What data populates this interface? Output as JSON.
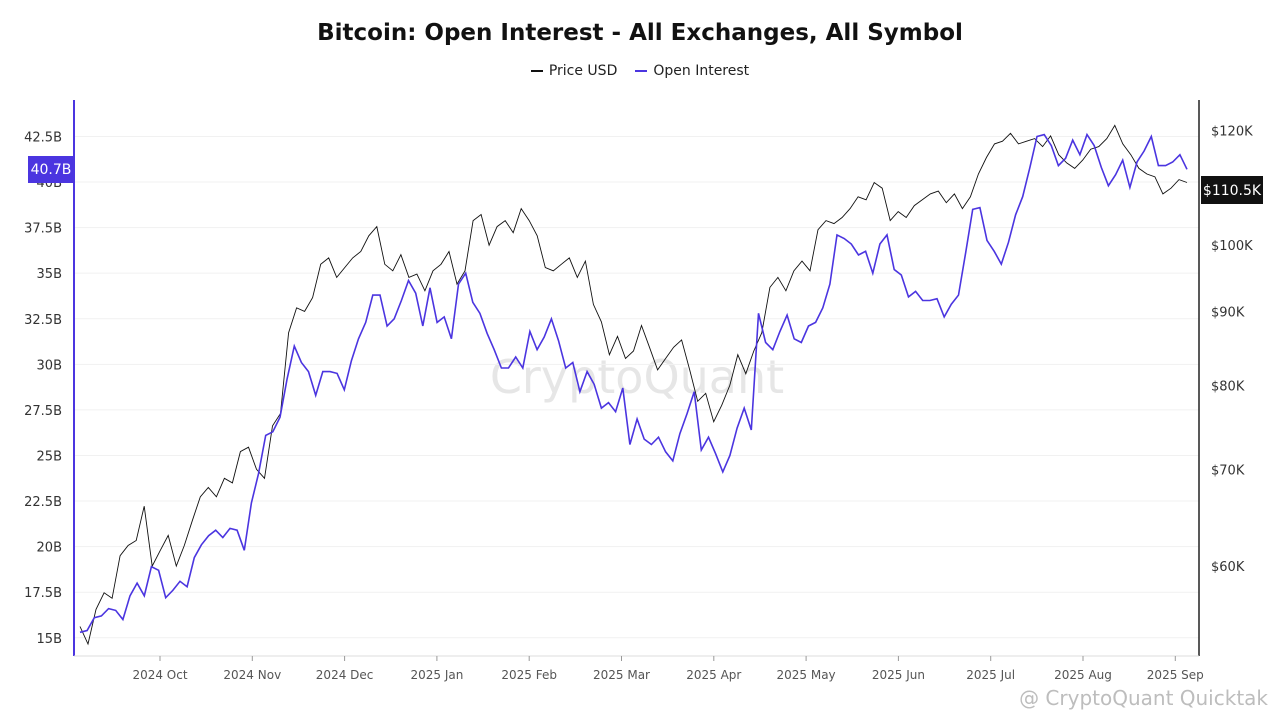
{
  "title": "Bitcoin: Open Interest - All Exchanges, All Symbol",
  "legend": [
    {
      "label": "Price USD",
      "color": "#111111"
    },
    {
      "label": "Open Interest",
      "color": "#4b35e0"
    }
  ],
  "watermark": "CryptoQuant",
  "footer": "@ CryptoQuant Quicktak",
  "colors": {
    "accent": "#4b35e0",
    "price": "#111111",
    "badge_dark": "#111111"
  },
  "chart_data": {
    "type": "line",
    "x_labels": [
      "2024 Oct",
      "2024 Nov",
      "2024 Dec",
      "2025 Jan",
      "2025 Feb",
      "2025 Mar",
      "2025 Apr",
      "2025 May",
      "2025 Jun",
      "2025 Jul",
      "2025 Aug",
      "2025 Sep"
    ],
    "y_left_ticks": [
      "15B",
      "17.5B",
      "20B",
      "22.5B",
      "25B",
      "27.5B",
      "30B",
      "32.5B",
      "35B",
      "37.5B",
      "40B",
      "42.5B"
    ],
    "y_right_ticks": [
      "$60K",
      "$70K",
      "$80K",
      "$90K",
      "$100K",
      "$120K"
    ],
    "y_left_range": [
      14,
      44.5
    ],
    "y_right_log_range": [
      52000,
      126000
    ],
    "current_oi_label": "40.7B",
    "current_price_label": "$110.5K",
    "series": [
      {
        "name": "Open Interest",
        "axis": "left",
        "color": "#4b35e0",
        "values": [
          15.3,
          15.4,
          16.1,
          16.2,
          16.6,
          16.5,
          16.0,
          17.3,
          18.0,
          17.3,
          18.9,
          18.7,
          17.2,
          17.6,
          18.1,
          17.8,
          19.4,
          20.1,
          20.6,
          20.9,
          20.5,
          21.0,
          20.9,
          19.8,
          22.4,
          24.0,
          26.1,
          26.3,
          27.1,
          29.2,
          31.0,
          30.1,
          29.6,
          28.3,
          29.6,
          29.6,
          29.5,
          28.6,
          30.2,
          31.4,
          32.3,
          33.8,
          33.8,
          32.1,
          32.5,
          33.5,
          34.6,
          33.9,
          32.1,
          34.2,
          32.3,
          32.6,
          31.4,
          34.4,
          35.0,
          33.4,
          32.8,
          31.7,
          30.8,
          29.8,
          29.8,
          30.4,
          29.8,
          31.8,
          30.8,
          31.5,
          32.5,
          31.3,
          29.8,
          30.1,
          28.5,
          29.6,
          28.9,
          27.6,
          27.9,
          27.4,
          28.7,
          25.6,
          27.0,
          25.9,
          25.6,
          26.0,
          25.2,
          24.7,
          26.2,
          27.3,
          28.5,
          25.3,
          26.0,
          25.1,
          24.1,
          25.0,
          26.5,
          27.6,
          26.4,
          32.8,
          31.2,
          30.8,
          31.8,
          32.7,
          31.4,
          31.2,
          32.1,
          32.3,
          33.1,
          34.4,
          37.1,
          36.9,
          36.6,
          36.0,
          36.2,
          35.0,
          36.6,
          37.1,
          35.2,
          34.9,
          33.7,
          34.0,
          33.5,
          33.5,
          33.6,
          32.6,
          33.3,
          33.8,
          36.1,
          38.5,
          38.6,
          36.8,
          36.2,
          35.5,
          36.7,
          38.2,
          39.2,
          40.8,
          42.5,
          42.6,
          42.0,
          40.9,
          41.3,
          42.3,
          41.5,
          42.6,
          42.0,
          40.8,
          39.8,
          40.4,
          41.2,
          39.7,
          41.1,
          41.7,
          42.5,
          40.9,
          40.9,
          41.1,
          41.5,
          40.7
        ]
      },
      {
        "name": "Price USD",
        "axis": "right",
        "color": "#111111",
        "values": [
          54500,
          53000,
          56000,
          57500,
          57000,
          61000,
          62000,
          62500,
          66000,
          60000,
          61500,
          63000,
          60000,
          62000,
          64500,
          67000,
          68000,
          67000,
          69000,
          68500,
          72000,
          72500,
          70000,
          69000,
          75000,
          76500,
          87000,
          90500,
          90000,
          92000,
          97000,
          98000,
          95000,
          96500,
          98000,
          99000,
          101500,
          103000,
          97000,
          96000,
          98500,
          95000,
          95500,
          93000,
          96000,
          97000,
          99000,
          94000,
          96000,
          104000,
          105000,
          100000,
          103000,
          104000,
          102000,
          106000,
          104000,
          101500,
          96500,
          96000,
          97000,
          98000,
          95000,
          97500,
          91000,
          88500,
          84000,
          86500,
          83500,
          84500,
          88000,
          85000,
          82000,
          83500,
          85000,
          86000,
          82000,
          78000,
          79000,
          75500,
          77500,
          80000,
          84000,
          81500,
          84500,
          87000,
          93500,
          95000,
          93000,
          96000,
          97500,
          96000,
          102500,
          104000,
          103500,
          104500,
          106000,
          108000,
          107500,
          110500,
          109500,
          104000,
          105500,
          104500,
          106500,
          107500,
          108500,
          109000,
          107000,
          108500,
          106000,
          108000,
          112000,
          115000,
          117500,
          118000,
          119500,
          117500,
          118000,
          118500,
          117000,
          119000,
          115500,
          114000,
          113000,
          114500,
          116500,
          117000,
          118500,
          121000,
          117500,
          115500,
          113000,
          112000,
          111500,
          108500,
          109500,
          111000,
          110500
        ],
        "series_type": "line"
      }
    ]
  }
}
